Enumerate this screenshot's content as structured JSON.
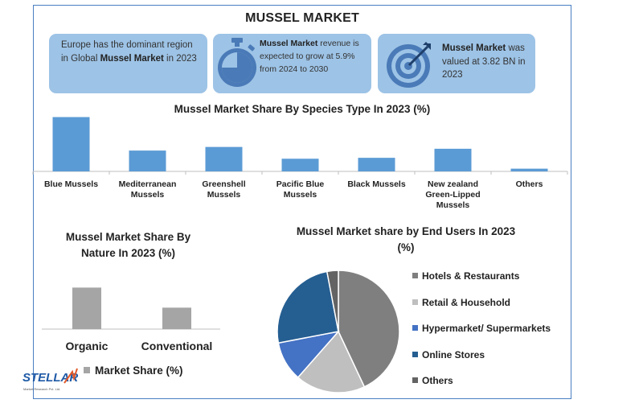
{
  "title": "MUSSEL MARKET",
  "callouts": [
    {
      "parts": [
        {
          "t": "Europe has the dominant region in Global "
        },
        {
          "t": "Mussel Market",
          "b": true
        },
        {
          "t": " in 2023"
        }
      ],
      "icon": "none"
    },
    {
      "parts": [
        {
          "t": "Mussel Market",
          "b": true
        },
        {
          "t": " revenue is expected to grow at 5.9% from 2024 to 2030"
        }
      ],
      "icon": "stopwatch-icon"
    },
    {
      "parts": [
        {
          "t": "Mussel Market",
          "b": true
        },
        {
          "t": " was valued at 3.82 BN in 2023"
        }
      ],
      "icon": "target-icon"
    }
  ],
  "colors": {
    "blue": "#5b9bd5",
    "gray": "#a5a5a5",
    "dark_gray": "#7f7f7f",
    "light_gray": "#bfbfbf",
    "royal_blue": "#4472c4",
    "navy": "#255e91",
    "slate": "#636363",
    "callout_bg": "#9dc3e6",
    "icon_blue": "#4a7ab7"
  },
  "chart_data": [
    {
      "type": "bar",
      "title": "Mussel Market Share By Species Type In 2023 (%)",
      "categories": [
        "Blue Mussels",
        "Mediterranean Mussels",
        "Greenshell Mussels",
        "Pacific Blue Mussels",
        "Black Mussels",
        "New zealand Green-Lipped Mussels",
        "Others"
      ],
      "category_lines": [
        [
          "Blue Mussels"
        ],
        [
          "Mediterranean",
          "Mussels"
        ],
        [
          "Greenshell",
          "Mussels"
        ],
        [
          "Pacific Blue",
          "Mussels"
        ],
        [
          "Black Mussels"
        ],
        [
          "New zealand",
          "Green-Lipped",
          "Mussels"
        ],
        [
          "Others"
        ]
      ],
      "values": [
        30,
        11.5,
        13.5,
        7,
        7.5,
        12.5,
        1.5
      ],
      "ylim": [
        0,
        32
      ],
      "grid": false,
      "color": "#5b9bd5"
    },
    {
      "type": "bar",
      "title_lines": [
        "Mussel Market Share By",
        "Nature In 2023 (%)"
      ],
      "categories": [
        "Organic",
        "Conventional"
      ],
      "series": [
        {
          "name": "Market Share (%)",
          "values": [
            60,
            31
          ]
        }
      ],
      "ylim": [
        0,
        100
      ],
      "grid": false,
      "legend": "bottom",
      "color": "#a5a5a5"
    },
    {
      "type": "pie",
      "title_lines": [
        "Mussel Market share by End Users In 2023",
        "(%)"
      ],
      "labels": [
        "Hotels & Restaurants",
        "Retail & Household",
        "Hypermarket/ Supermarkets",
        "Online Stores",
        "Others"
      ],
      "values": [
        43,
        18.5,
        10.5,
        25,
        3
      ],
      "colors": [
        "#7f7f7f",
        "#bfbfbf",
        "#4472c4",
        "#255e91",
        "#636363"
      ],
      "legend": "right"
    }
  ],
  "logo": {
    "name": "STELLAR",
    "tagline": "Market Research Pvt. Ltd."
  }
}
